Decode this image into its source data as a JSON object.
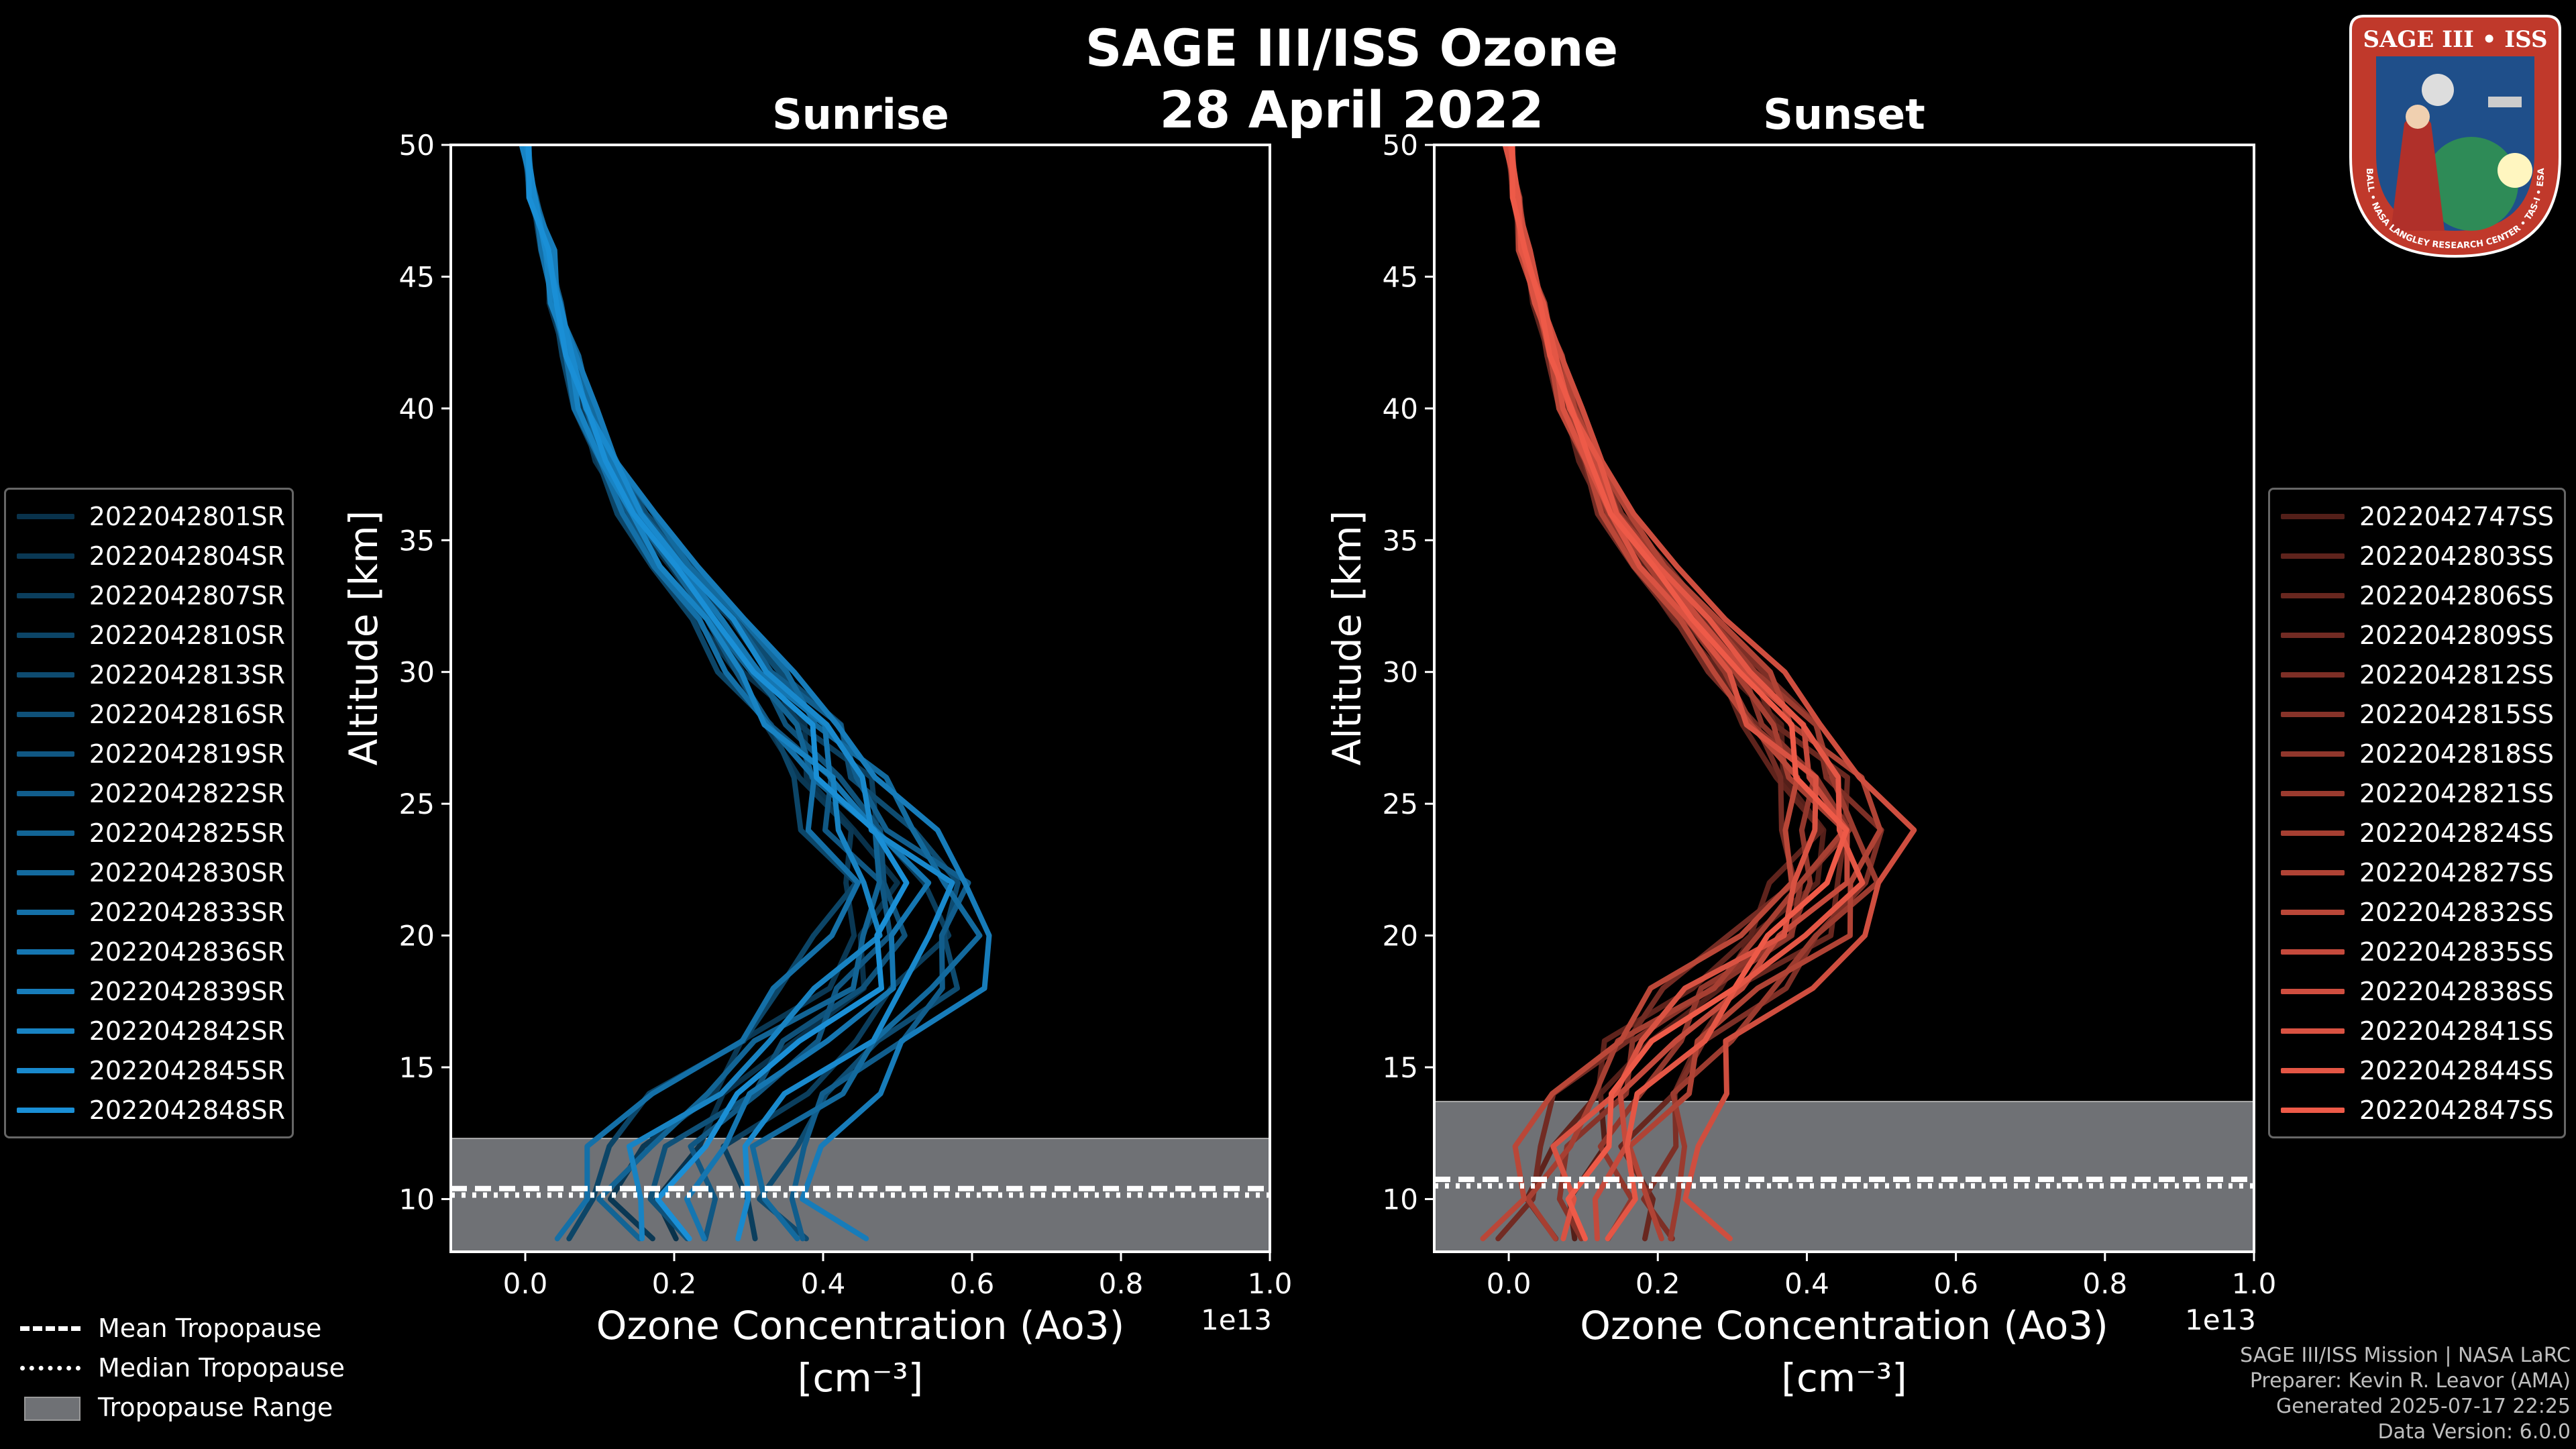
{
  "title": "SAGE III/ISS Ozone",
  "date": "28 April 2022",
  "chart_data": [
    {
      "type": "line",
      "title": "Sunrise",
      "xlabel": "Ozone Concentration (Ao3)",
      "xlabel_unit": "[cm⁻³]",
      "ylabel": "Altitude [km]",
      "x_offset_label": "1e13",
      "xlim": [
        -0.1,
        1.0
      ],
      "ylim": [
        8,
        50
      ],
      "xticks": [
        0.0,
        0.2,
        0.4,
        0.6,
        0.8,
        1.0
      ],
      "xtick_labels": [
        "0.0",
        "0.2",
        "0.4",
        "0.6",
        "0.8",
        "1.0"
      ],
      "yticks": [
        10,
        15,
        20,
        25,
        30,
        35,
        40,
        45,
        50
      ],
      "color": "#1a8fd6",
      "tropopause": {
        "range": [
          8.0,
          12.3
        ],
        "mean": 10.4,
        "median": 10.15
      },
      "altitudes": [
        50,
        48,
        46,
        44,
        42,
        40,
        38,
        36,
        34,
        32,
        30,
        28,
        26,
        24,
        22,
        20,
        18,
        16,
        14,
        12,
        10,
        8.5
      ],
      "base_profile": [
        0.0,
        0.01,
        0.03,
        0.04,
        0.06,
        0.08,
        0.11,
        0.15,
        0.2,
        0.26,
        0.31,
        0.37,
        0.42,
        0.46,
        0.51,
        0.5,
        0.46,
        0.38,
        0.3,
        0.22,
        0.2,
        0.22
      ],
      "series": [
        {
          "name": "2022042801SR",
          "shift": 0.0,
          "amp": 0.95
        },
        {
          "name": "2022042804SR",
          "shift": -0.02,
          "amp": 0.9
        },
        {
          "name": "2022042807SR",
          "shift": 0.03,
          "amp": 1.05
        },
        {
          "name": "2022042810SR",
          "shift": -0.04,
          "amp": 0.85
        },
        {
          "name": "2022042813SR",
          "shift": 0.05,
          "amp": 1.1
        },
        {
          "name": "2022042816SR",
          "shift": -0.01,
          "amp": 1.0
        },
        {
          "name": "2022042819SR",
          "shift": 0.02,
          "amp": 0.92
        },
        {
          "name": "2022042822SR",
          "shift": 0.06,
          "amp": 1.08
        },
        {
          "name": "2022042825SR",
          "shift": -0.03,
          "amp": 0.97
        },
        {
          "name": "2022042830SR",
          "shift": 0.04,
          "amp": 1.12
        },
        {
          "name": "2022042833SR",
          "shift": -0.05,
          "amp": 0.88
        },
        {
          "name": "2022042836SR",
          "shift": 0.01,
          "amp": 1.02
        },
        {
          "name": "2022042839SR",
          "shift": 0.07,
          "amp": 1.15
        },
        {
          "name": "2022042842SR",
          "shift": -0.02,
          "amp": 0.93
        },
        {
          "name": "2022042845SR",
          "shift": 0.03,
          "amp": 1.06
        },
        {
          "name": "2022042848SR",
          "shift": 0.0,
          "amp": 0.99
        }
      ]
    },
    {
      "type": "line",
      "title": "Sunset",
      "xlabel": "Ozone Concentration (Ao3)",
      "xlabel_unit": "[cm⁻³]",
      "ylabel": "Altitude [km]",
      "x_offset_label": "1e13",
      "xlim": [
        -0.1,
        1.0
      ],
      "ylim": [
        8,
        50
      ],
      "xticks": [
        0.0,
        0.2,
        0.4,
        0.6,
        0.8,
        1.0
      ],
      "xtick_labels": [
        "0.0",
        "0.2",
        "0.4",
        "0.6",
        "0.8",
        "1.0"
      ],
      "yticks": [
        10,
        15,
        20,
        25,
        30,
        35,
        40,
        45,
        50
      ],
      "color": "#ee5a48",
      "tropopause": {
        "range": [
          8.0,
          13.7
        ],
        "mean": 10.75,
        "median": 10.5
      },
      "altitudes": [
        50,
        48,
        46,
        44,
        42,
        40,
        38,
        36,
        34,
        32,
        30,
        28,
        26,
        24,
        22,
        20,
        18,
        16,
        14,
        12,
        10,
        8.5
      ],
      "base_profile": [
        0.0,
        0.01,
        0.02,
        0.04,
        0.06,
        0.08,
        0.11,
        0.14,
        0.19,
        0.25,
        0.31,
        0.36,
        0.41,
        0.44,
        0.42,
        0.37,
        0.28,
        0.2,
        0.15,
        0.11,
        0.1,
        0.1
      ],
      "series": [
        {
          "name": "2022042747SS",
          "shift": 0.0,
          "amp": 0.95
        },
        {
          "name": "2022042803SS",
          "shift": -0.02,
          "amp": 0.9
        },
        {
          "name": "2022042806SS",
          "shift": 0.03,
          "amp": 1.05
        },
        {
          "name": "2022042809SS",
          "shift": -0.03,
          "amp": 0.88
        },
        {
          "name": "2022042812SS",
          "shift": 0.04,
          "amp": 1.1
        },
        {
          "name": "2022042815SS",
          "shift": -0.01,
          "amp": 1.0
        },
        {
          "name": "2022042818SS",
          "shift": 0.02,
          "amp": 0.94
        },
        {
          "name": "2022042821SS",
          "shift": 0.05,
          "amp": 1.08
        },
        {
          "name": "2022042824SS",
          "shift": -0.02,
          "amp": 0.97
        },
        {
          "name": "2022042827SS",
          "shift": 0.03,
          "amp": 1.12
        },
        {
          "name": "2022042832SS",
          "shift": -0.04,
          "amp": 0.9
        },
        {
          "name": "2022042835SS",
          "shift": 0.01,
          "amp": 1.03
        },
        {
          "name": "2022042838SS",
          "shift": 0.06,
          "amp": 1.18
        },
        {
          "name": "2022042841SS",
          "shift": -0.01,
          "amp": 0.95
        },
        {
          "name": "2022042844SS",
          "shift": 0.02,
          "amp": 1.06
        },
        {
          "name": "2022042847SS",
          "shift": 0.0,
          "amp": 1.0
        }
      ]
    }
  ],
  "tropopause_legend": [
    {
      "label": "Mean Tropopause",
      "style": "dashed"
    },
    {
      "label": "Median Tropopause",
      "style": "dotted"
    },
    {
      "label": "Tropopause Range",
      "style": "patch"
    }
  ],
  "credits": [
    "SAGE III/ISS Mission | NASA LaRC",
    "Preparer: Kevin R. Leavor (AMA)",
    "Generated 2025-07-17 22:25",
    "Data Version: 6.0.0"
  ],
  "logo": {
    "title": "SAGE III • ISS",
    "ring_text": "BALL • NASA LANGLEY RESEARCH CENTER • TAS-I • ESA",
    "colors": {
      "ring": "#c0392b",
      "inner": "#1f4f8a",
      "earth": "#2e8b57"
    }
  }
}
